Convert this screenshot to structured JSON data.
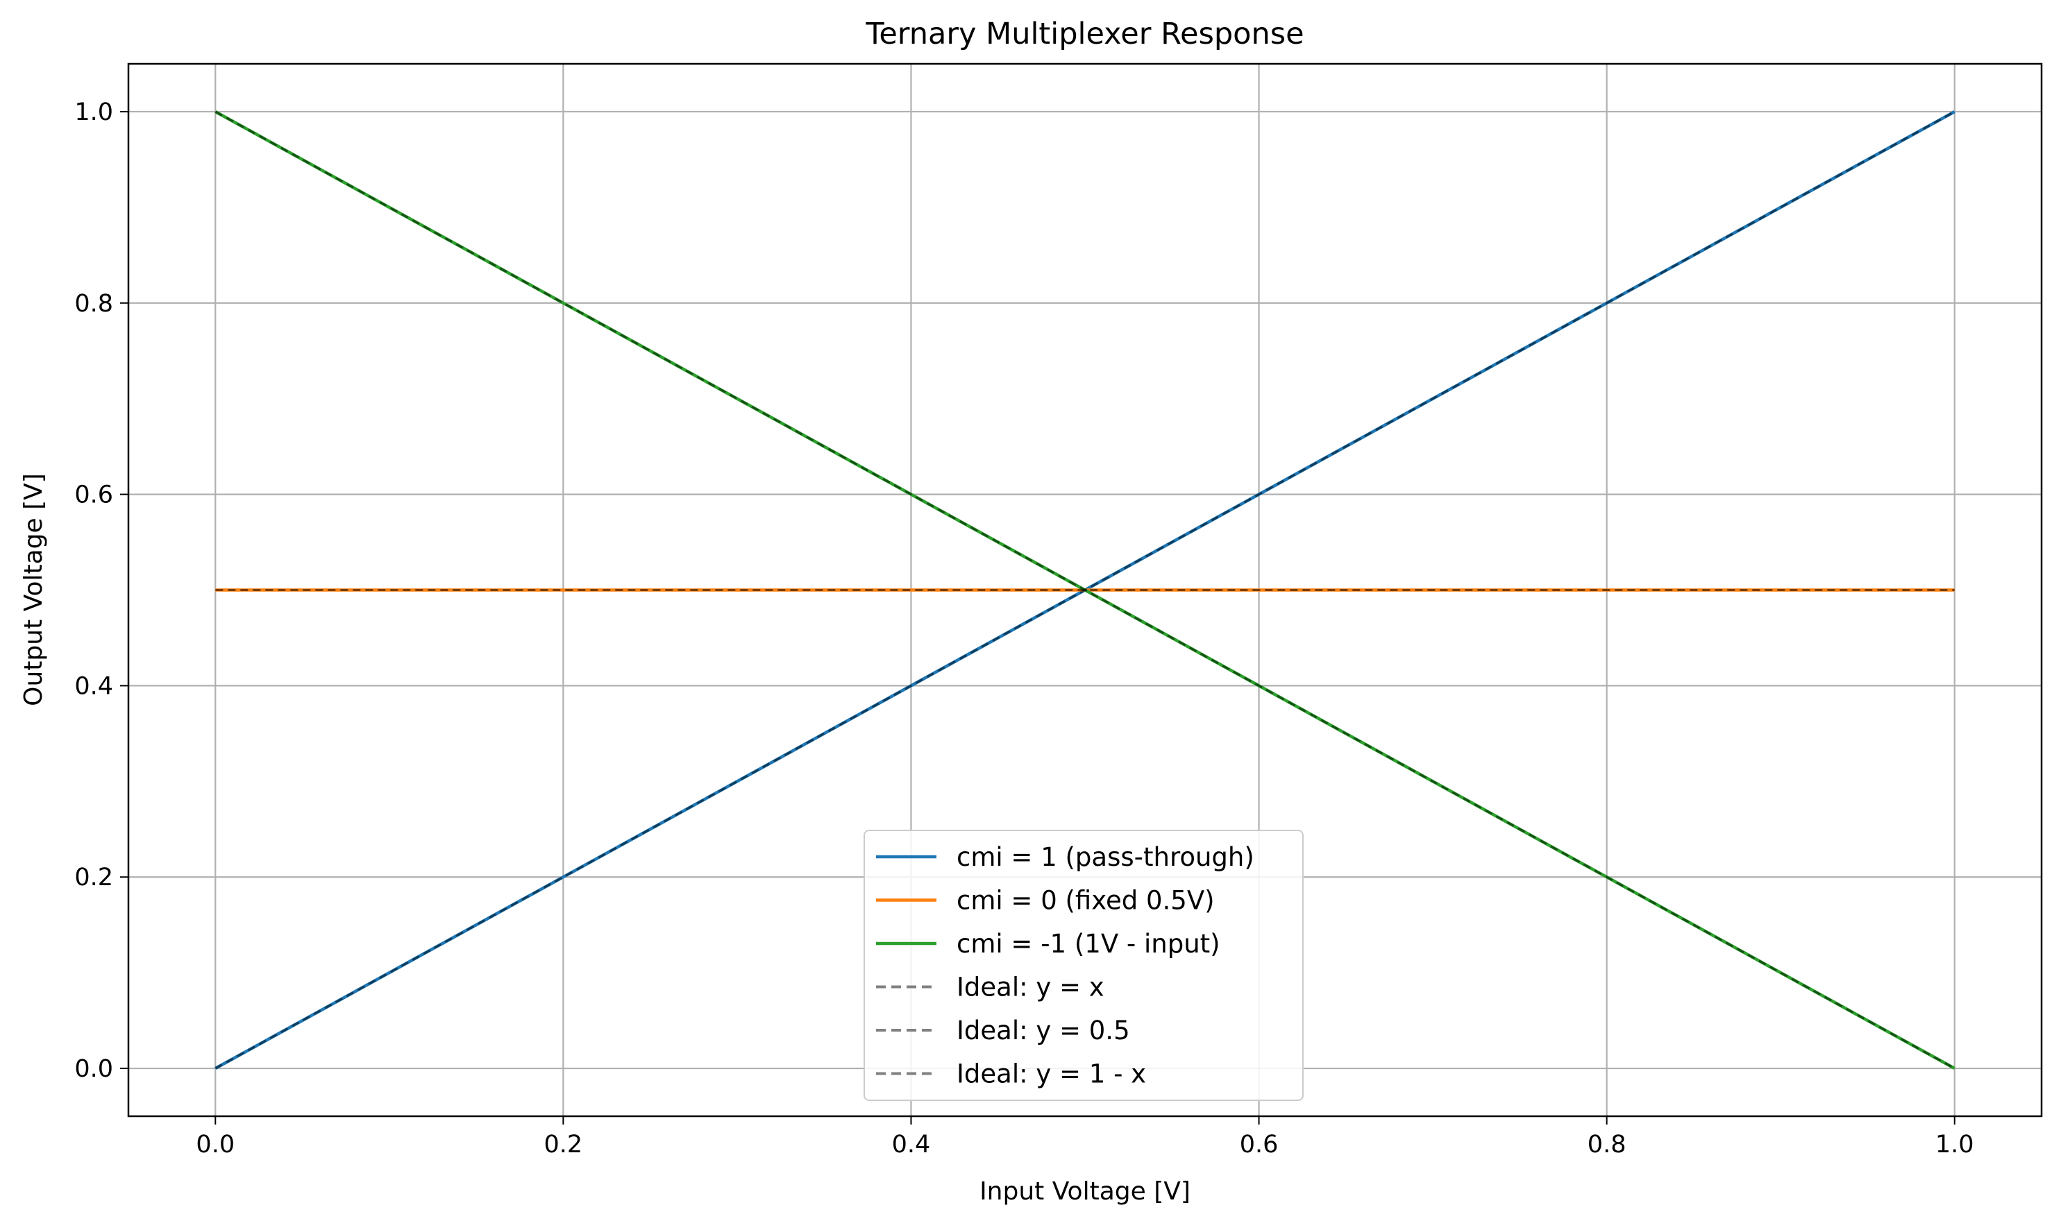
{
  "chart_data": {
    "type": "line",
    "title": "Ternary Multiplexer Response",
    "xlabel": "Input Voltage [V]",
    "ylabel": "Output Voltage [V]",
    "xlim": [
      -0.05,
      1.05
    ],
    "ylim": [
      -0.05,
      1.05
    ],
    "xticks": [
      0.0,
      0.2,
      0.4,
      0.6,
      0.8,
      1.0
    ],
    "xtick_labels": [
      "0.0",
      "0.2",
      "0.4",
      "0.6",
      "0.8",
      "1.0"
    ],
    "yticks": [
      0.0,
      0.2,
      0.4,
      0.6,
      0.8,
      1.0
    ],
    "ytick_labels": [
      "0.0",
      "0.2",
      "0.4",
      "0.6",
      "0.8",
      "1.0"
    ],
    "grid": true,
    "legend_position": "lower-center",
    "series": [
      {
        "name": "cmi = 1 (pass-through)",
        "color": "#1f77b4",
        "style": "solid",
        "x": [
          0.0,
          0.2,
          0.4,
          0.6,
          0.8,
          1.0
        ],
        "y": [
          0.0,
          0.2,
          0.4,
          0.6,
          0.8,
          1.0
        ]
      },
      {
        "name": "cmi = 0 (fixed 0.5V)",
        "color": "#ff7f0e",
        "style": "solid",
        "x": [
          0.0,
          0.2,
          0.4,
          0.6,
          0.8,
          1.0
        ],
        "y": [
          0.5,
          0.5,
          0.5,
          0.5,
          0.5,
          0.5
        ]
      },
      {
        "name": "cmi = -1 (1V - input)",
        "color": "#2ca02c",
        "style": "solid",
        "x": [
          0.0,
          0.2,
          0.4,
          0.6,
          0.8,
          1.0
        ],
        "y": [
          1.0,
          0.8,
          0.6,
          0.4,
          0.2,
          0.0
        ]
      },
      {
        "name": "Ideal: y = x",
        "color": "#000000",
        "style": "dashed",
        "x": [
          0.0,
          0.2,
          0.4,
          0.6,
          0.8,
          1.0
        ],
        "y": [
          0.0,
          0.2,
          0.4,
          0.6,
          0.8,
          1.0
        ]
      },
      {
        "name": "Ideal: y = 0.5",
        "color": "#000000",
        "style": "dashed",
        "x": [
          0.0,
          0.2,
          0.4,
          0.6,
          0.8,
          1.0
        ],
        "y": [
          0.5,
          0.5,
          0.5,
          0.5,
          0.5,
          0.5
        ]
      },
      {
        "name": "Ideal: y = 1 - x",
        "color": "#000000",
        "style": "dashed",
        "x": [
          0.0,
          0.2,
          0.4,
          0.6,
          0.8,
          1.0
        ],
        "y": [
          1.0,
          0.8,
          0.6,
          0.4,
          0.2,
          0.0
        ]
      }
    ]
  }
}
